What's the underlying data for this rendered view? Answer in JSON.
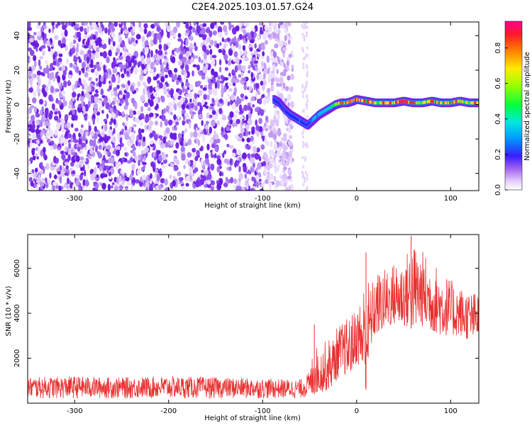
{
  "title": "C2E4.2025.103.01.57.G24",
  "colors": {
    "snr_line": "#e83030",
    "scatter_colormap": [
      "#ffffff",
      "#e9d9fb",
      "#c9a5f5",
      "#9b59ef",
      "#7a1fe8",
      "#2a22ff",
      "#00cfff",
      "#00ff3a",
      "#ffe400",
      "#ff2a2a",
      "#ff00aa"
    ]
  },
  "chart_data": [
    {
      "type": "heatmap",
      "name": "spectrogram",
      "xlabel": "Height of straight line (km)",
      "ylabel": "Frequency (Hz)",
      "xlim": [
        -350,
        130
      ],
      "ylim": [
        -50,
        48
      ],
      "xticks": [
        -300,
        -200,
        -100,
        0,
        100
      ],
      "yticks": [
        -40,
        -20,
        0,
        20,
        40
      ],
      "noise_region": {
        "x_range": [
          -350,
          -68
        ],
        "extra_band": [
          -58,
          -52
        ]
      },
      "signal_track": {
        "x": [
          -88,
          -82,
          -76,
          -70,
          -64,
          -58,
          -52,
          -46,
          -40,
          -34,
          -28,
          -22,
          -16,
          -10,
          -4,
          0,
          10,
          20,
          30,
          40,
          50,
          60,
          70,
          80,
          90,
          100,
          110,
          120,
          130
        ],
        "y": [
          3,
          1,
          -3,
          -6,
          -8,
          -10,
          -12,
          -9,
          -6,
          -4,
          -2,
          0,
          1,
          1,
          2,
          3,
          2,
          1,
          1,
          1,
          2,
          1,
          1,
          2,
          1,
          1,
          2,
          1,
          1
        ],
        "amplitude": [
          0.3,
          0.35,
          0.3,
          0.35,
          0.4,
          0.4,
          0.35,
          0.45,
          0.5,
          0.55,
          0.6,
          0.7,
          0.8,
          0.9,
          0.85,
          0.9,
          0.85,
          0.8,
          0.85,
          0.85,
          0.9,
          0.85,
          0.8,
          0.85,
          0.8,
          0.85,
          0.8,
          0.8,
          0.8
        ]
      },
      "colorbar": {
        "label": "Normalized spectral amplitude",
        "range": [
          0.0,
          0.95
        ],
        "ticks": [
          "0.0",
          "0.2",
          "0.4",
          "0.6",
          "0.8"
        ]
      }
    },
    {
      "type": "line",
      "name": "snr",
      "xlabel": "Height of straight line (km)",
      "ylabel": "SNR (10 * v/v)",
      "xlim": [
        -350,
        130
      ],
      "ylim": [
        0,
        7500
      ],
      "xticks": [
        -300,
        -200,
        -100,
        0,
        100
      ],
      "yticks": [
        2000,
        4000,
        6000
      ],
      "envelope": {
        "x": [
          -350,
          -300,
          -250,
          -200,
          -150,
          -100,
          -60,
          -50,
          -45,
          -40,
          -35,
          -30,
          -25,
          -20,
          -15,
          -10,
          -5,
          0,
          5,
          10,
          15,
          20,
          30,
          40,
          50,
          60,
          70,
          80,
          90,
          100,
          110,
          120,
          130
        ],
        "low": [
          200,
          200,
          200,
          200,
          200,
          200,
          200,
          250,
          400,
          500,
          500,
          600,
          800,
          1100,
          1300,
          1200,
          1400,
          1800,
          1500,
          600,
          2500,
          3000,
          3300,
          3500,
          3400,
          3300,
          3400,
          3200,
          3000,
          3000,
          3000,
          2800,
          3000
        ],
        "high": [
          1150,
          1200,
          1150,
          1200,
          1150,
          1100,
          1050,
          1400,
          2800,
          2300,
          2700,
          2900,
          3000,
          3500,
          3600,
          3800,
          4000,
          4300,
          4800,
          6000,
          5200,
          5800,
          6000,
          6300,
          6500,
          7200,
          6800,
          6300,
          6000,
          5500,
          5200,
          5000,
          4900
        ]
      },
      "peaks": [
        {
          "x": 58,
          "y": 7450
        },
        {
          "x": 10,
          "y": 6700
        },
        {
          "x": -45,
          "y": 3500
        }
      ]
    }
  ]
}
